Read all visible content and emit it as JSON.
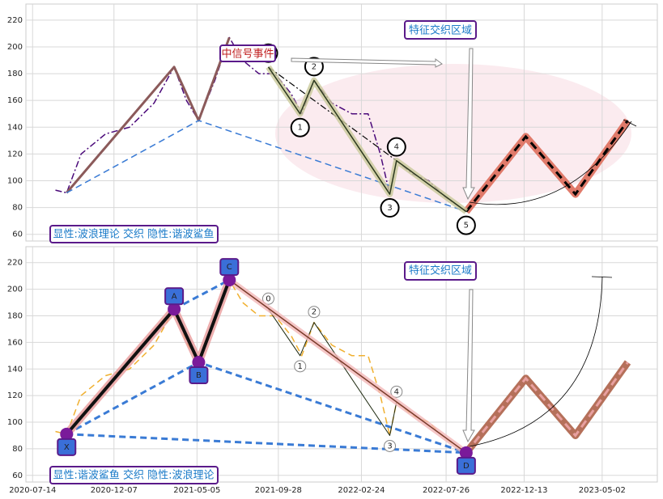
{
  "chart_data": [
    {
      "type": "line",
      "x": [
        "2020-08-24",
        "2020-09-13",
        "2020-10-09",
        "2020-11-22",
        "2021-01-04",
        "2021-02-17",
        "2021-03-25",
        "2021-04-16",
        "2021-05-08",
        "2021-06-06",
        "2021-07-02",
        "2021-07-26",
        "2021-08-24",
        "2021-09-22",
        "2021-10-21",
        "2021-11-09",
        "2021-12-01",
        "2022-01-02",
        "2022-02-07",
        "2022-03-08",
        "2022-03-30",
        "2022-04-16",
        "2022-04-28",
        "2022-05-27",
        "2022-06-25",
        "2022-07-24",
        "2022-08-31"
      ],
      "values": [
        93,
        91,
        120,
        135,
        140,
        158,
        185,
        160,
        145,
        175,
        207,
        190,
        180,
        180,
        165,
        150,
        175,
        158,
        150,
        150,
        120,
        90,
        115,
        105,
        100,
        88,
        77
      ],
      "color": "#4b0a7a",
      "style": "dashdot",
      "xlim": [
        "2020-07-02",
        "2023-08-09"
      ],
      "ylim": [
        55,
        232
      ],
      "yticks": [
        60,
        80,
        100,
        120,
        140,
        160,
        180,
        200,
        220
      ],
      "xticks": [
        "2020-07-14",
        "2020-12-07",
        "2021-05-05",
        "2021-09-28",
        "2022-02-24",
        "2022-07-26",
        "2022-12-13",
        "2023-05-02"
      ],
      "show_xtick_labels": false,
      "grid": true,
      "projection": {
        "x": [
          "2022-08-31",
          "2022-12-16",
          "2023-03-15",
          "2023-06-17"
        ],
        "values": [
          77,
          133,
          90,
          145
        ],
        "color": "#000000",
        "glow": "#e07a6a"
      },
      "waves": [
        {
          "x": [
            "2020-09-13",
            "2021-03-25",
            "2021-05-08",
            "2021-07-02"
          ],
          "values": [
            91,
            185,
            145,
            207
          ],
          "color": "#8b5a5a",
          "style": "solid",
          "width": 3
        },
        {
          "x": [
            "2020-09-13",
            "2021-05-08",
            "2022-08-31"
          ],
          "values": [
            91,
            145,
            77
          ],
          "color": "#3a7bd5",
          "style": "dashed",
          "width": 1.5
        },
        {
          "x": [
            "2021-09-10",
            "2022-08-31"
          ],
          "values": [
            185,
            77
          ],
          "color": "#000000",
          "style": "dashdot",
          "width": 1.2
        },
        {
          "x": [
            "2021-09-10",
            "2021-11-06",
            "2021-12-01",
            "2022-04-16",
            "2022-04-28",
            "2022-08-31"
          ],
          "values": [
            185,
            150,
            175,
            90,
            115,
            77
          ],
          "color": "#2d3a1e",
          "glow": "#c9c99a",
          "style": "solid",
          "width": 1.5,
          "labels": [
            "0",
            "1",
            "2",
            "3",
            "4",
            "5"
          ],
          "label_shape": "circle"
        }
      ],
      "annotations": [
        "特征交织区域",
        "中信号事件",
        "显性:波浪理论 交织 隐性:谐波鲨鱼"
      ]
    },
    {
      "type": "line",
      "x": [
        "2020-08-24",
        "2020-09-13",
        "2020-10-09",
        "2020-11-22",
        "2021-01-04",
        "2021-02-17",
        "2021-03-25",
        "2021-04-16",
        "2021-05-08",
        "2021-06-06",
        "2021-07-02",
        "2021-07-26",
        "2021-08-24",
        "2021-09-22",
        "2021-10-21",
        "2021-11-09",
        "2021-12-01",
        "2022-01-02",
        "2022-02-07",
        "2022-03-08",
        "2022-03-30",
        "2022-04-16",
        "2022-04-28",
        "2022-05-27",
        "2022-06-25",
        "2022-07-24",
        "2022-08-31"
      ],
      "values": [
        93,
        91,
        120,
        135,
        140,
        158,
        185,
        160,
        145,
        175,
        207,
        190,
        180,
        180,
        165,
        150,
        175,
        158,
        150,
        150,
        120,
        90,
        115,
        105,
        100,
        88,
        77
      ],
      "color": "#f0b030",
      "style": "dashed",
      "xlim": [
        "2020-07-02",
        "2023-08-09"
      ],
      "ylim": [
        55,
        232
      ],
      "yticks": [
        60,
        80,
        100,
        120,
        140,
        160,
        180,
        200,
        220
      ],
      "xticks": [
        "2020-07-14",
        "2020-12-07",
        "2021-05-05",
        "2021-09-28",
        "2022-02-24",
        "2022-07-26",
        "2022-12-13",
        "2023-05-02"
      ],
      "show_xtick_labels": true,
      "grid": true,
      "projection": {
        "x": [
          "2022-08-31",
          "2022-12-16",
          "2023-03-15",
          "2023-06-17"
        ],
        "values": [
          77,
          133,
          90,
          145
        ],
        "color": "#e8a0a0",
        "glow": "#b5705a"
      },
      "waves": [
        {
          "x": [
            "2020-09-13",
            "2021-05-08",
            "2022-08-31"
          ],
          "values": [
            91,
            145,
            77
          ],
          "color": "#3a7bd5",
          "style": "dashed",
          "width": 3
        },
        {
          "x": [
            "2021-03-25",
            "2021-07-02"
          ],
          "values": [
            185,
            207
          ],
          "color": "#3a7bd5",
          "style": "dashed",
          "width": 3
        },
        {
          "x": [
            "2020-09-13",
            "2022-08-31"
          ],
          "values": [
            91,
            77
          ],
          "color": "#3a7bd5",
          "style": "dashed",
          "width": 3
        },
        {
          "x": [
            "2021-09-10",
            "2021-11-06",
            "2021-12-01",
            "2022-04-16",
            "2022-04-28"
          ],
          "values": [
            185,
            150,
            175,
            90,
            115
          ],
          "color": "#1e2a10",
          "style": "solid",
          "width": 1,
          "labels": [
            "0",
            "1",
            "2",
            "3",
            "4"
          ],
          "label_shape": "small-circle"
        },
        {
          "x": [
            "2021-07-02",
            "2022-08-31"
          ],
          "values": [
            207,
            77
          ],
          "color": "#7a3a2a",
          "glow": "#f2b8b8",
          "style": "solid",
          "width": 1.5,
          "labels": [
            null,
            "D"
          ],
          "label_shape": "box"
        },
        {
          "x": [
            "2020-09-13",
            "2021-03-25",
            "2021-05-08",
            "2021-07-02"
          ],
          "values": [
            91,
            185,
            145,
            207
          ],
          "color": "#111111",
          "glow": "#e89a9a",
          "style": "solid",
          "width": 4,
          "labels": [
            "X",
            "A",
            "B",
            "C"
          ],
          "label_shape": "box"
        }
      ],
      "annotations": [
        "特征交织区域",
        "显性:谐波鲨鱼 交织 隐性:波浪理论"
      ]
    }
  ]
}
